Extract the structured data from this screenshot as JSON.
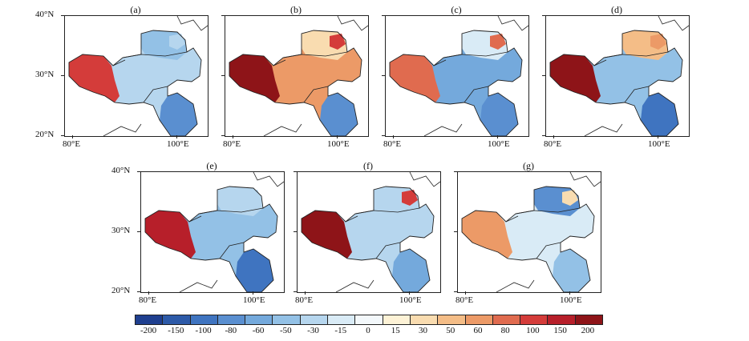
{
  "panels": [
    {
      "label": "(a)"
    },
    {
      "label": "(b)"
    },
    {
      "label": "(c)"
    },
    {
      "label": "(d)"
    },
    {
      "label": "(e)"
    },
    {
      "label": "(f)"
    },
    {
      "label": "(g)"
    }
  ],
  "axes": {
    "lat_labels": [
      "40°N",
      "30°N",
      "20°N"
    ],
    "lon_labels": [
      "80°E",
      "100°E"
    ]
  },
  "colorbar": {
    "labels": [
      "-200",
      "-150",
      "-100",
      "-80",
      "-60",
      "-50",
      "-30",
      "-15",
      "0",
      "15",
      "30",
      "50",
      "60",
      "80",
      "100",
      "150",
      "200"
    ],
    "colors": [
      "#1f3f8f",
      "#2d5aa8",
      "#3f74c0",
      "#5a8fd0",
      "#74a9dc",
      "#93c1e6",
      "#b6d6ee",
      "#d9ebf6",
      "#f3f8fb",
      "#fdf2d6",
      "#f9dcb0",
      "#f4bd87",
      "#ec9a67",
      "#e06b4f",
      "#d43c3a",
      "#b71f2a",
      "#8e1418"
    ]
  }
}
